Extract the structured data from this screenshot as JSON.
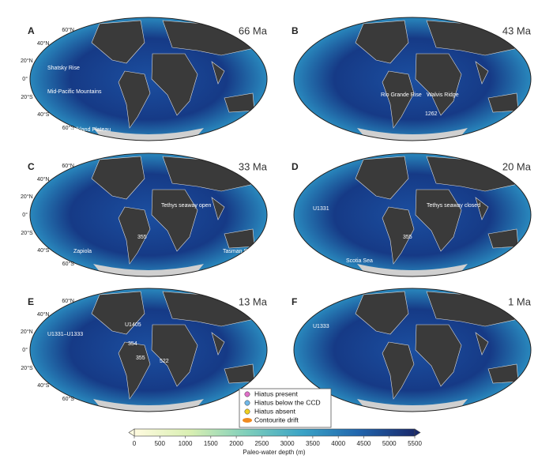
{
  "panels": [
    {
      "letter": "A",
      "age": "66 Ma",
      "lat_labels": [
        "60°N",
        "40°N",
        "20°N",
        "0°",
        "20°S",
        "40°S",
        "60°S"
      ],
      "annotations": [
        "Shatsky Rise",
        "Mid-Pacific Mountains",
        "Falkland Plateau"
      ]
    },
    {
      "letter": "B",
      "age": "43 Ma",
      "lat_labels": [],
      "annotations": [
        "Rio Grande Rise",
        "Walvis Ridge",
        "1262"
      ]
    },
    {
      "letter": "C",
      "age": "33 Ma",
      "lat_labels": [
        "60°N",
        "40°N",
        "20°N",
        "0°",
        "20°S",
        "40°S",
        "60°S"
      ],
      "annotations": [
        "Tethys seaway open",
        "355",
        "Zapiola",
        "Tasman Sea"
      ]
    },
    {
      "letter": "D",
      "age": "20 Ma",
      "lat_labels": [],
      "annotations": [
        "U1331",
        "Tethys seaway closed",
        "355",
        "Scotia Sea"
      ]
    },
    {
      "letter": "E",
      "age": "13 Ma",
      "lat_labels": [
        "60°N",
        "40°N",
        "20°N",
        "0°",
        "20°S",
        "40°S",
        "60°S"
      ],
      "annotations": [
        "U1405",
        "U1331–U1333",
        "354",
        "355",
        "522"
      ]
    },
    {
      "letter": "F",
      "age": "1 Ma",
      "lat_labels": [],
      "annotations": [
        "U1333"
      ]
    }
  ],
  "legend": [
    {
      "label": "Hiatus present",
      "color": "#e070c8"
    },
    {
      "label": "Hiatus below the CCD",
      "color": "#70b8e8"
    },
    {
      "label": "Hiatus absent",
      "color": "#f0d020"
    },
    {
      "label": "Contourite drift",
      "color": "#f08a20"
    }
  ],
  "colorbar": {
    "lim": [
      0,
      5500
    ],
    "ticks": [
      0,
      500,
      1000,
      1500,
      2000,
      2500,
      3000,
      3500,
      4000,
      4500,
      5000,
      5500
    ],
    "label": "Paleo-water depth (m)"
  }
}
